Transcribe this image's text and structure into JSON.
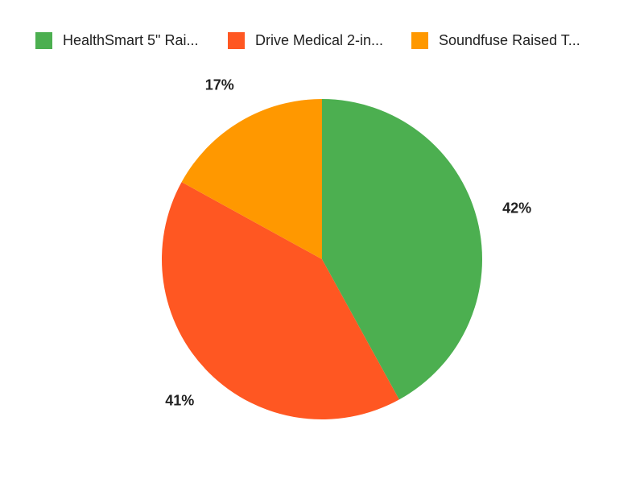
{
  "chart_data": {
    "type": "pie",
    "categories": [
      "HealthSmart 5\" Rai...",
      "Drive Medical 2-in...",
      "Soundfuse Raised T..."
    ],
    "values": [
      42,
      41,
      17
    ],
    "value_labels": [
      "42%",
      "41%",
      "17%"
    ],
    "colors": [
      "#4caf50",
      "#ff5722",
      "#ff9800"
    ],
    "legend": "top"
  }
}
